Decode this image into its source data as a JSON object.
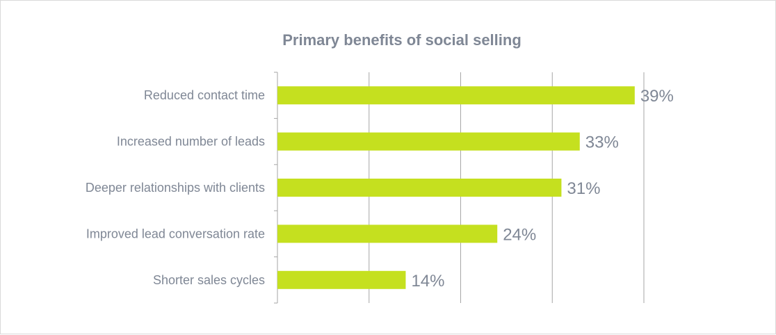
{
  "chart_data": {
    "type": "bar",
    "orientation": "horizontal",
    "title": "Primary benefits of social selling",
    "categories": [
      "Reduced contact time",
      "Increased number of leads",
      "Deeper relationships with clients",
      "Improved lead conversation rate",
      "Shorter sales cycles"
    ],
    "values": [
      39,
      33,
      31,
      24,
      14
    ],
    "value_labels": [
      "39%",
      "33%",
      "31%",
      "24%",
      "14%"
    ],
    "xlim": [
      0,
      40
    ],
    "grid": true,
    "legend": "none",
    "colors": {
      "bar": "#c5e01f",
      "text": "#7f8795",
      "grid": "#a6a6a6",
      "axis": "#a6a6a6"
    }
  }
}
